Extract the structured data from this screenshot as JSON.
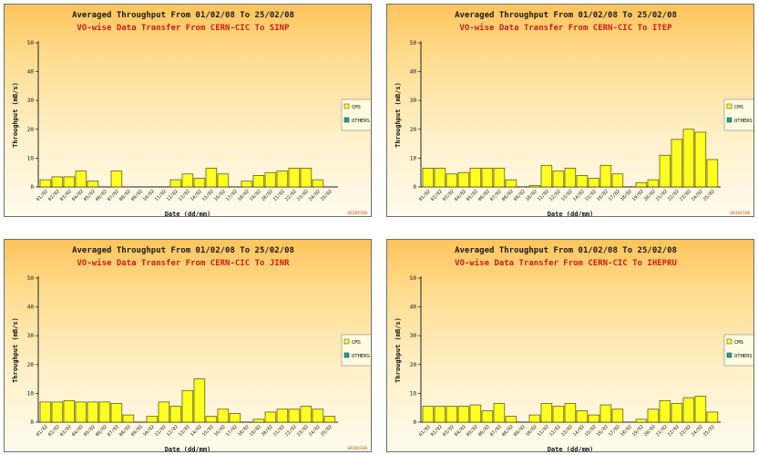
{
  "colors": {
    "cms": "#ffff22",
    "others": "#1aa2a2",
    "title": "#1b1b1b",
    "subtitle": "#c81e10",
    "credit": "#b85a10"
  },
  "chart_data": [
    {
      "type": "bar",
      "title": "Averaged Throughput From 01/02/08 To 25/02/08",
      "subtitle": "VO-wise Data Transfer From CERN-CIC To SINP",
      "xlabel": "Date (dd/mm)",
      "ylabel": "Throughput (mB/s)",
      "ylim": [
        0,
        50
      ],
      "yticks": [
        0,
        10,
        20,
        30,
        40,
        50
      ],
      "categories": [
        "01/02",
        "02/02",
        "03/02",
        "04/02",
        "05/02",
        "06/02",
        "07/02",
        "08/02",
        "09/02",
        "10/02",
        "11/02",
        "12/02",
        "13/02",
        "14/02",
        "15/02",
        "16/02",
        "17/02",
        "18/02",
        "19/02",
        "20/02",
        "21/02",
        "22/02",
        "23/02",
        "24/02",
        "25/02"
      ],
      "legend": [
        "CMS",
        "OTHERS"
      ],
      "legend_position": "right",
      "credit": "GRIDVIEW",
      "series": [
        {
          "name": "CMS",
          "values": [
            2.5,
            3.5,
            3.5,
            5.5,
            2,
            0,
            5.5,
            0,
            0,
            0,
            0,
            2.5,
            4.5,
            3,
            6.5,
            4.5,
            0,
            2,
            4,
            5,
            5.5,
            6.5,
            6.5,
            2.5,
            0
          ]
        },
        {
          "name": "OTHERS",
          "values": [
            0,
            0,
            0,
            0,
            0,
            0,
            0,
            0,
            0,
            0,
            0,
            0,
            0,
            0,
            0,
            0,
            0,
            0,
            0,
            0,
            0,
            0,
            0,
            0,
            0
          ]
        }
      ]
    },
    {
      "type": "bar",
      "title": "Averaged Throughput From 01/02/08 To 25/02/08",
      "subtitle": "VO-wise Data Transfer From CERN-CIC To ITEP",
      "xlabel": "Date (dd/mm)",
      "ylabel": "Throughput (mB/s)",
      "ylim": [
        0,
        50
      ],
      "yticks": [
        0,
        10,
        20,
        30,
        40,
        50
      ],
      "categories": [
        "01/02",
        "02/02",
        "03/02",
        "04/02",
        "05/02",
        "06/02",
        "07/02",
        "08/02",
        "09/02",
        "10/02",
        "11/02",
        "12/02",
        "13/02",
        "14/02",
        "15/02",
        "16/02",
        "17/02",
        "18/02",
        "19/02",
        "20/02",
        "21/02",
        "22/02",
        "23/02",
        "24/02",
        "25/02"
      ],
      "legend": [
        "CMS",
        "OTHERS"
      ],
      "legend_position": "right",
      "credit": "GRIDVIEW",
      "series": [
        {
          "name": "CMS",
          "values": [
            6.5,
            6.5,
            4.5,
            5,
            6.5,
            6.5,
            6.5,
            2.5,
            0,
            0.5,
            7.5,
            5.5,
            6.5,
            4,
            3,
            7.5,
            4.5,
            0,
            1.5,
            2.5,
            11,
            16.5,
            20,
            19,
            9.5
          ]
        },
        {
          "name": "OTHERS",
          "values": [
            0,
            0,
            0,
            0,
            0,
            0,
            0,
            0,
            0,
            0,
            0,
            0,
            0,
            0,
            0,
            0,
            0,
            0,
            0,
            0,
            0,
            0,
            0,
            0,
            0
          ]
        }
      ]
    },
    {
      "type": "bar",
      "title": "Averaged Throughput From 01/02/08 To 25/02/08",
      "subtitle": "VO-wise Data Transfer From CERN-CIC To JINR",
      "xlabel": "Date (dd/mm)",
      "ylabel": "Throughput (mB/s)",
      "ylim": [
        0,
        50
      ],
      "yticks": [
        0,
        10,
        20,
        30,
        40,
        50
      ],
      "categories": [
        "01/02",
        "02/02",
        "03/02",
        "04/02",
        "05/02",
        "06/02",
        "07/02",
        "08/02",
        "09/02",
        "10/02",
        "11/02",
        "12/02",
        "13/02",
        "14/02",
        "15/02",
        "16/02",
        "17/02",
        "18/02",
        "19/02",
        "20/02",
        "21/02",
        "22/02",
        "23/02",
        "24/02",
        "25/02"
      ],
      "legend": [
        "CMS",
        "OTHERS"
      ],
      "legend_position": "right",
      "credit": "GRIDVIEW",
      "series": [
        {
          "name": "CMS",
          "values": [
            7,
            7,
            7.5,
            7,
            7,
            7,
            6.5,
            2.5,
            0,
            2,
            7,
            5.5,
            11,
            15,
            2,
            4.5,
            3,
            0,
            1,
            3.5,
            4.5,
            4.5,
            5.5,
            4.5,
            2
          ]
        },
        {
          "name": "OTHERS",
          "values": [
            0,
            0,
            0,
            0,
            0,
            0,
            0,
            0,
            0,
            0,
            0,
            0,
            0,
            0,
            0,
            0,
            0,
            0,
            0,
            0,
            0,
            0,
            0,
            0,
            0
          ]
        }
      ]
    },
    {
      "type": "bar",
      "title": "Averaged Throughput From 01/02/08 To 25/02/08",
      "subtitle": "VO-wise Data Transfer From CERN-CIC To IHEPRU",
      "xlabel": "Date (dd/mm)",
      "ylabel": "Throughput (mB/s)",
      "ylim": [
        0,
        50
      ],
      "yticks": [
        0,
        10,
        20,
        30,
        40,
        50
      ],
      "categories": [
        "01/02",
        "02/02",
        "03/02",
        "04/02",
        "05/02",
        "06/02",
        "07/02",
        "08/02",
        "09/02",
        "10/02",
        "11/02",
        "12/02",
        "13/02",
        "14/02",
        "15/02",
        "16/02",
        "17/02",
        "18/02",
        "19/02",
        "20/02",
        "21/02",
        "22/02",
        "23/02",
        "24/02",
        "25/02"
      ],
      "legend": [
        "CMS",
        "OTHERS"
      ],
      "legend_position": "right",
      "credit": "",
      "series": [
        {
          "name": "CMS",
          "values": [
            5.5,
            5.5,
            5.5,
            5.5,
            6,
            4,
            6.5,
            2,
            0,
            2.5,
            6.5,
            5.5,
            6.5,
            4,
            2.5,
            6,
            4.5,
            0,
            1,
            4.5,
            7.5,
            6.5,
            8.5,
            9,
            3.5
          ]
        },
        {
          "name": "OTHERS",
          "values": [
            0,
            0,
            0,
            0,
            0,
            0,
            0,
            0,
            0,
            0,
            0,
            0,
            0,
            0,
            0,
            0,
            0,
            0,
            0,
            0,
            0,
            0,
            0,
            0,
            0
          ]
        }
      ]
    }
  ]
}
